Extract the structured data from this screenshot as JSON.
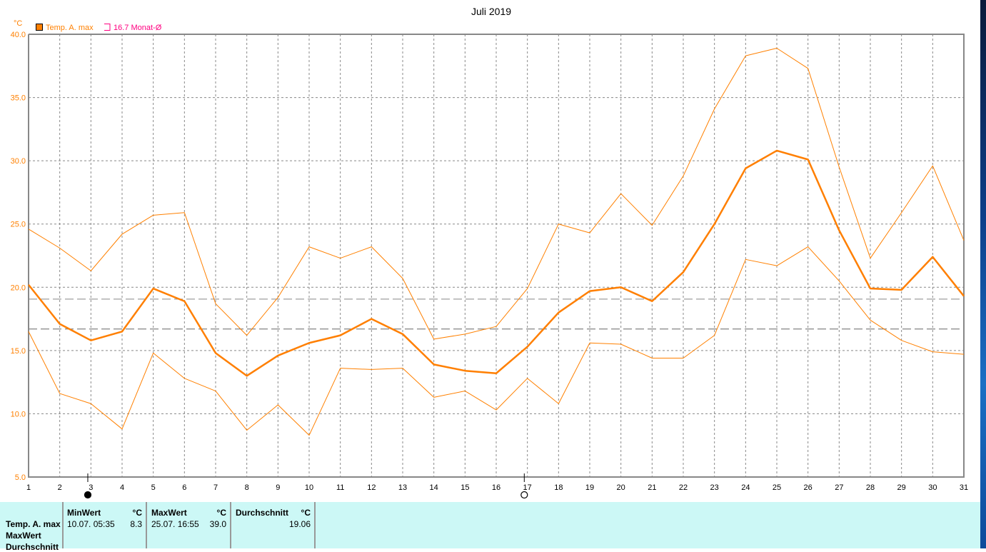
{
  "chart_data": {
    "type": "line",
    "title": "Juli 2019",
    "ylabel": "°C",
    "ylim": [
      5,
      40
    ],
    "yticks": [
      "5.0",
      "10.0",
      "15.0",
      "20.0",
      "25.0",
      "30.0",
      "35.0",
      "40.0"
    ],
    "x": [
      1,
      2,
      3,
      4,
      5,
      6,
      7,
      8,
      9,
      10,
      11,
      12,
      13,
      14,
      15,
      16,
      17,
      18,
      19,
      20,
      21,
      22,
      23,
      24,
      25,
      26,
      27,
      28,
      29,
      30,
      31
    ],
    "grid": true,
    "legend": [
      {
        "label": "Temp. A. max",
        "color": "#ff8000"
      },
      {
        "label": "16.7 Monat-Ø",
        "color": "#ff0080"
      }
    ],
    "series": [
      {
        "name": "Temp. A. max (Durchschnitt)",
        "color": "#ff7f00",
        "width": 2.5,
        "values": [
          20.2,
          17.1,
          15.8,
          16.5,
          19.9,
          18.9,
          14.8,
          13.0,
          14.6,
          15.6,
          16.2,
          17.5,
          16.3,
          13.9,
          13.4,
          13.2,
          15.3,
          18.0,
          19.7,
          20.0,
          18.9,
          21.2,
          25.0,
          29.4,
          30.8,
          30.1,
          24.5,
          19.9,
          19.8,
          22.4,
          19.3
        ]
      },
      {
        "name": "Temp. A. max (MaxWert)",
        "color": "#ff8000",
        "width": 1,
        "values": [
          24.6,
          23.1,
          21.3,
          24.2,
          25.7,
          25.9,
          18.7,
          16.2,
          19.2,
          23.2,
          22.3,
          23.2,
          20.7,
          15.9,
          16.3,
          16.9,
          19.9,
          25.0,
          24.3,
          27.4,
          24.9,
          28.8,
          34.1,
          38.3,
          38.9,
          37.3,
          29.5,
          22.3,
          25.9,
          29.6,
          23.7
        ]
      },
      {
        "name": "Temp. A. max (MinWert)",
        "color": "#ff8000",
        "width": 1,
        "values": [
          16.5,
          11.6,
          10.8,
          8.8,
          14.8,
          12.8,
          11.8,
          8.7,
          10.7,
          8.3,
          13.6,
          13.5,
          13.6,
          11.3,
          11.8,
          10.3,
          12.8,
          10.8,
          15.6,
          15.5,
          14.4,
          14.4,
          16.2,
          22.2,
          21.7,
          23.2,
          20.5,
          17.4,
          15.8,
          14.9,
          14.7
        ]
      }
    ],
    "reference_lines": [
      {
        "value": 19.06,
        "color": "#888888"
      },
      {
        "value": 16.7,
        "color": "#666666"
      }
    ],
    "moon_phases": [
      {
        "day": 2.9,
        "phase": "full"
      },
      {
        "day": 16.9,
        "phase": "new"
      }
    ]
  },
  "stats": {
    "row_labels": [
      "Temp. A. max",
      "MaxWert",
      "Durchschnitt"
    ],
    "min": {
      "header": "MinWert",
      "unit": "°C",
      "date": "10.07.  05:35",
      "value": "8.3"
    },
    "max": {
      "header": "MaxWert",
      "unit": "°C",
      "date": "25.07.  16:55",
      "value": "39.0"
    },
    "avg": {
      "header": "Durchschnitt",
      "unit": "°C",
      "value": "19.06"
    }
  }
}
